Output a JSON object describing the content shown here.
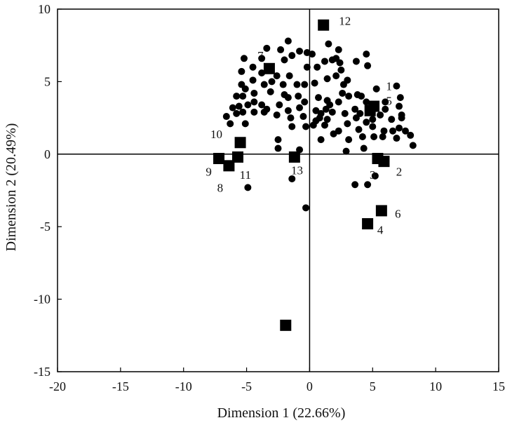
{
  "chart_data": {
    "type": "scatter",
    "xlabel": "Dimension 1 (22.66%)",
    "ylabel": "Dimension 2 (20.49%)",
    "xlim": [
      -20,
      15
    ],
    "ylim": [
      -15,
      10
    ],
    "xticks": [
      -20,
      -15,
      -10,
      -5,
      0,
      5,
      10,
      15
    ],
    "yticks": [
      -15,
      -10,
      -5,
      0,
      5,
      10
    ],
    "xtick_labels": [
      "-20",
      "-15",
      "-10",
      "-5",
      "0",
      "5",
      "10",
      "15"
    ],
    "ytick_labels": [
      "-15",
      "-10",
      "-5",
      "0",
      "5",
      "10"
    ],
    "grid": false,
    "zero_lines": true,
    "colors": {
      "points": "#000000",
      "axes": "#000000"
    },
    "series": [
      {
        "marker": "circle",
        "points": [
          [
            -1.7,
            7.8
          ],
          [
            -3.4,
            7.3
          ],
          [
            -3.8,
            6.6
          ],
          [
            -2.3,
            7.2
          ],
          [
            -2.0,
            6.5
          ],
          [
            -1.4,
            6.8
          ],
          [
            -0.8,
            7.1
          ],
          [
            -0.2,
            7.0
          ],
          [
            0.2,
            6.9
          ],
          [
            1.5,
            7.6
          ],
          [
            2.3,
            7.2
          ],
          [
            2.1,
            6.6
          ],
          [
            1.2,
            6.4
          ],
          [
            3.7,
            6.4
          ],
          [
            4.5,
            6.9
          ],
          [
            4.6,
            6.1
          ],
          [
            -5.2,
            6.6
          ],
          [
            -4.5,
            6.0
          ],
          [
            -3.8,
            5.6
          ],
          [
            -2.6,
            5.4
          ],
          [
            -1.6,
            5.4
          ],
          [
            -0.2,
            6.0
          ],
          [
            0.6,
            6.0
          ],
          [
            1.8,
            6.5
          ],
          [
            2.4,
            6.3
          ],
          [
            2.5,
            5.8
          ],
          [
            2.1,
            5.4
          ],
          [
            1.4,
            5.2
          ],
          [
            3.0,
            5.1
          ],
          [
            2.7,
            4.8
          ],
          [
            -5.4,
            5.7
          ],
          [
            -5.4,
            4.8
          ],
          [
            -5.1,
            4.5
          ],
          [
            -4.5,
            5.1
          ],
          [
            -3.6,
            4.8
          ],
          [
            -3.0,
            5.0
          ],
          [
            -2.1,
            4.8
          ],
          [
            -1.0,
            4.8
          ],
          [
            -0.4,
            4.8
          ],
          [
            0.4,
            4.9
          ],
          [
            2.6,
            4.2
          ],
          [
            -5.8,
            4.0
          ],
          [
            -5.3,
            4.0
          ],
          [
            -4.4,
            4.2
          ],
          [
            -3.1,
            4.3
          ],
          [
            -2.0,
            4.1
          ],
          [
            -1.7,
            3.9
          ],
          [
            -0.9,
            4.0
          ],
          [
            -0.4,
            3.6
          ],
          [
            0.7,
            3.9
          ],
          [
            1.4,
            3.7
          ],
          [
            3.1,
            4.0
          ],
          [
            3.8,
            4.1
          ],
          [
            4.1,
            4.0
          ],
          [
            5.3,
            4.5
          ],
          [
            6.9,
            4.7
          ],
          [
            7.2,
            3.9
          ],
          [
            6.0,
            3.6
          ],
          [
            -6.1,
            3.2
          ],
          [
            -5.6,
            3.3
          ],
          [
            -4.9,
            3.4
          ],
          [
            -4.4,
            3.6
          ],
          [
            -3.8,
            3.4
          ],
          [
            -3.4,
            3.1
          ],
          [
            -2.4,
            3.4
          ],
          [
            -1.7,
            3.0
          ],
          [
            -0.8,
            3.2
          ],
          [
            0.5,
            3.0
          ],
          [
            0.9,
            2.8
          ],
          [
            1.3,
            3.1
          ],
          [
            1.6,
            3.4
          ],
          [
            2.3,
            3.6
          ],
          [
            3.6,
            3.1
          ],
          [
            4.5,
            3.6
          ],
          [
            6.0,
            3.1
          ],
          [
            7.1,
            3.3
          ],
          [
            -6.6,
            2.6
          ],
          [
            -5.8,
            2.8
          ],
          [
            -5.3,
            2.9
          ],
          [
            -4.4,
            2.9
          ],
          [
            -3.6,
            2.9
          ],
          [
            -2.6,
            2.7
          ],
          [
            -1.5,
            2.5
          ],
          [
            -0.5,
            2.6
          ],
          [
            0.5,
            2.3
          ],
          [
            0.8,
            2.5
          ],
          [
            1.4,
            2.4
          ],
          [
            1.8,
            2.9
          ],
          [
            2.8,
            2.8
          ],
          [
            3.7,
            2.5
          ],
          [
            4.0,
            2.8
          ],
          [
            4.5,
            2.2
          ],
          [
            5.0,
            2.4
          ],
          [
            5.6,
            2.7
          ],
          [
            6.5,
            2.4
          ],
          [
            7.3,
            2.7
          ],
          [
            7.3,
            2.5
          ],
          [
            -6.3,
            2.1
          ],
          [
            -5.1,
            2.1
          ],
          [
            -1.4,
            1.9
          ],
          [
            -0.3,
            1.9
          ],
          [
            0.3,
            2.0
          ],
          [
            1.2,
            2.0
          ],
          [
            2.3,
            1.6
          ],
          [
            3.0,
            2.1
          ],
          [
            3.9,
            1.7
          ],
          [
            5.0,
            1.9
          ],
          [
            5.9,
            1.6
          ],
          [
            6.6,
            1.6
          ],
          [
            7.1,
            1.8
          ],
          [
            7.6,
            1.6
          ],
          [
            8.0,
            1.3
          ],
          [
            1.9,
            1.4
          ],
          [
            4.2,
            1.2
          ],
          [
            5.1,
            1.2
          ],
          [
            5.8,
            1.2
          ],
          [
            6.9,
            1.1
          ],
          [
            -2.5,
            1.0
          ],
          [
            0.9,
            1.0
          ],
          [
            3.1,
            1.0
          ],
          [
            8.2,
            0.6
          ],
          [
            -2.5,
            0.4
          ],
          [
            -0.8,
            0.3
          ],
          [
            2.9,
            0.2
          ],
          [
            4.3,
            0.4
          ],
          [
            -1.4,
            -1.7
          ],
          [
            3.6,
            -2.1
          ],
          [
            4.6,
            -2.1
          ],
          [
            5.2,
            -1.5
          ],
          [
            -4.9,
            -2.3
          ],
          [
            -0.3,
            -3.7
          ]
        ]
      },
      {
        "marker": "square",
        "points": [
          {
            "x": 5.1,
            "y": 3.3,
            "label": ""
          },
          {
            "x": 5.9,
            "y": -0.5,
            "label": ""
          },
          {
            "x": 5.4,
            "y": -0.3,
            "label": ""
          },
          {
            "x": 4.6,
            "y": -4.8,
            "label": ""
          },
          {
            "x": 4.8,
            "y": 3.0,
            "label": ""
          },
          {
            "x": 5.7,
            "y": -3.9,
            "label": ""
          },
          {
            "x": -3.2,
            "y": 5.9,
            "label": ""
          },
          {
            "x": -6.4,
            "y": -0.8,
            "label": ""
          },
          {
            "x": -7.2,
            "y": -0.3,
            "label": ""
          },
          {
            "x": -5.5,
            "y": 0.8,
            "label": ""
          },
          {
            "x": -5.7,
            "y": -0.2,
            "label": ""
          },
          {
            "x": 1.1,
            "y": 8.9,
            "label": ""
          },
          {
            "x": -1.2,
            "y": -0.2,
            "label": ""
          },
          {
            "x": -1.9,
            "y": -11.8,
            "label": ""
          }
        ]
      }
    ],
    "annotations": [
      {
        "text": "1",
        "x": 6.3,
        "y": 4.7
      },
      {
        "text": "2",
        "x": 7.1,
        "y": -1.2
      },
      {
        "text": "3",
        "x": 5.0,
        "y": -1.4
      },
      {
        "text": "4",
        "x": 5.6,
        "y": -5.2
      },
      {
        "text": "5",
        "x": 6.3,
        "y": 3.7
      },
      {
        "text": "6",
        "x": 7.0,
        "y": -4.1
      },
      {
        "text": "7",
        "x": -3.9,
        "y": 6.8
      },
      {
        "text": "8",
        "x": -7.1,
        "y": -2.3
      },
      {
        "text": "9",
        "x": -8.0,
        "y": -1.2
      },
      {
        "text": "10",
        "x": -7.4,
        "y": 1.4
      },
      {
        "text": "11",
        "x": -5.1,
        "y": -1.4
      },
      {
        "text": "12",
        "x": 2.8,
        "y": 9.2
      },
      {
        "text": "13",
        "x": -1.0,
        "y": -1.1
      }
    ]
  }
}
